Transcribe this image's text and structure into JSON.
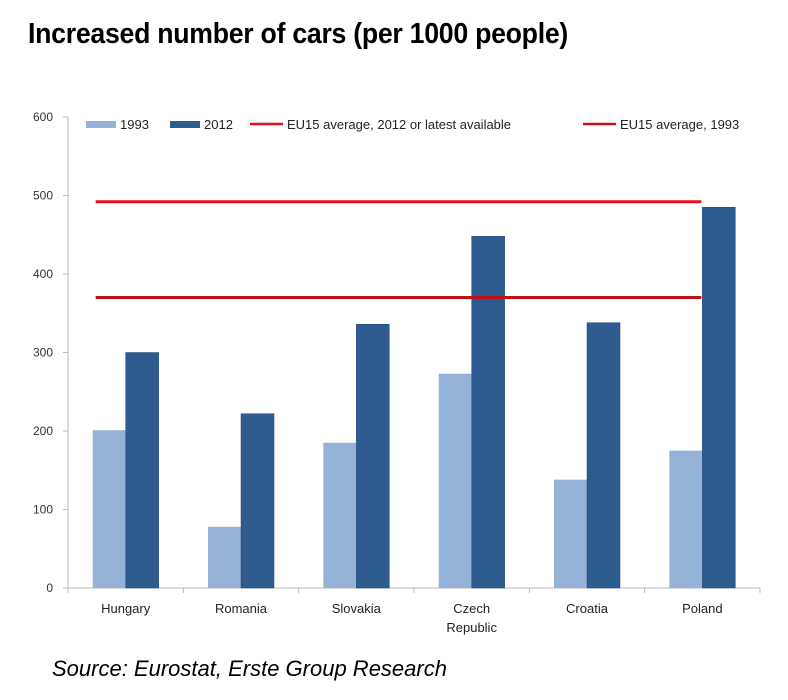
{
  "title": "Increased number of cars (per 1000 people)",
  "source": "Source: Eurostat, Erste Group Research",
  "colors": {
    "series_1993": "#95b3d9",
    "series_2012": "#2e5b90",
    "eu15_2012": "#e8101c",
    "eu15_1993": "#c0101a",
    "axis": "#bbbbbb"
  },
  "chart_data": {
    "type": "bar",
    "title": "Increased number of cars (per 1000 people)",
    "xlabel": "",
    "ylabel": "",
    "ylim": [
      0,
      600
    ],
    "yticks": [
      0,
      100,
      200,
      300,
      400,
      500,
      600
    ],
    "grid": false,
    "legend_position": "top",
    "categories": [
      "Hungary",
      "Romania",
      "Slovakia",
      "Czech Republic",
      "Croatia",
      "Poland"
    ],
    "category_lines": [
      [
        "Hungary"
      ],
      [
        "Romania"
      ],
      [
        "Slovakia"
      ],
      [
        "Czech",
        "Republic"
      ],
      [
        "Croatia"
      ],
      [
        "Poland"
      ]
    ],
    "series": [
      {
        "name": "1993",
        "type": "bar",
        "values": [
          201,
          78,
          185,
          273,
          138,
          175
        ]
      },
      {
        "name": "2012",
        "type": "bar",
        "values": [
          300,
          222,
          336,
          448,
          338,
          485
        ]
      }
    ],
    "reference_lines": [
      {
        "name": "EU15 average, 2012 or latest available",
        "value": 492
      },
      {
        "name": "EU15 average, 1993",
        "value": 370
      }
    ],
    "legend": [
      "1993",
      "2012",
      "EU15 average, 2012 or latest available",
      "EU15 average, 1993"
    ]
  }
}
